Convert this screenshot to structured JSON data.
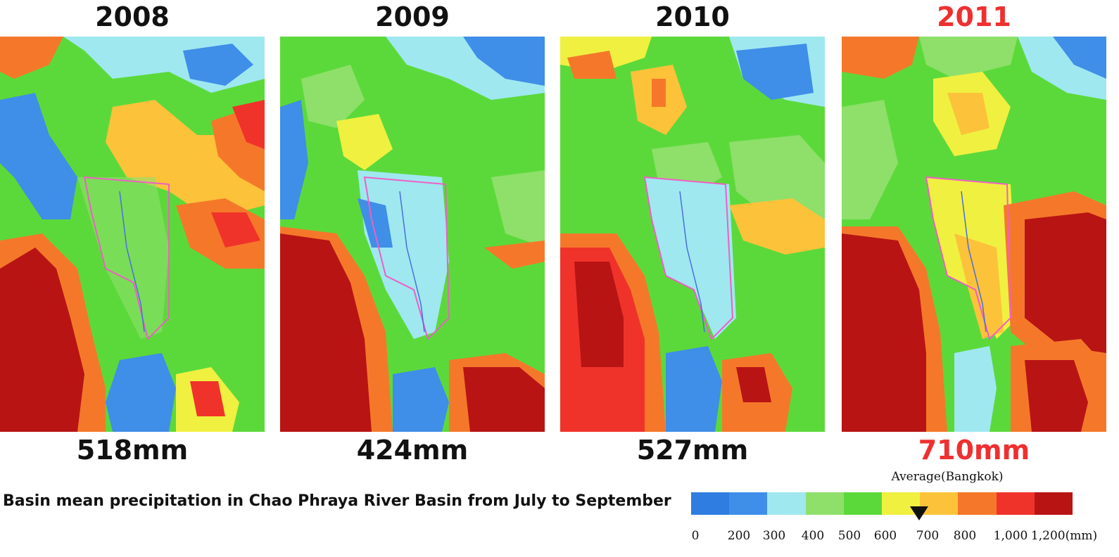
{
  "panels": [
    {
      "year": "2008",
      "value": "518mm",
      "highlight": false
    },
    {
      "year": "2009",
      "value": "424mm",
      "highlight": false
    },
    {
      "year": "2010",
      "value": "527mm",
      "highlight": false
    },
    {
      "year": "2011",
      "value": "710mm",
      "highlight": true
    }
  ],
  "caption": "Basin mean precipitation in Chao Phraya River Basin from July to September",
  "legend": {
    "marker_label": "Average(Bangkok)",
    "marker_value_mm": 680,
    "tick_labels": [
      "0",
      "200",
      "300",
      "400",
      "500",
      "600",
      "700",
      "800",
      "1,000",
      "1,200(mm)"
    ],
    "colors": [
      "#2f7de0",
      "#3f8ee8",
      "#9fe8f0",
      "#8ee06a",
      "#5cd93a",
      "#f0f040",
      "#fcc23a",
      "#f5782a",
      "#f0332a",
      "#b81414"
    ]
  },
  "colors": {
    "highlight_text": "#ee3030"
  }
}
